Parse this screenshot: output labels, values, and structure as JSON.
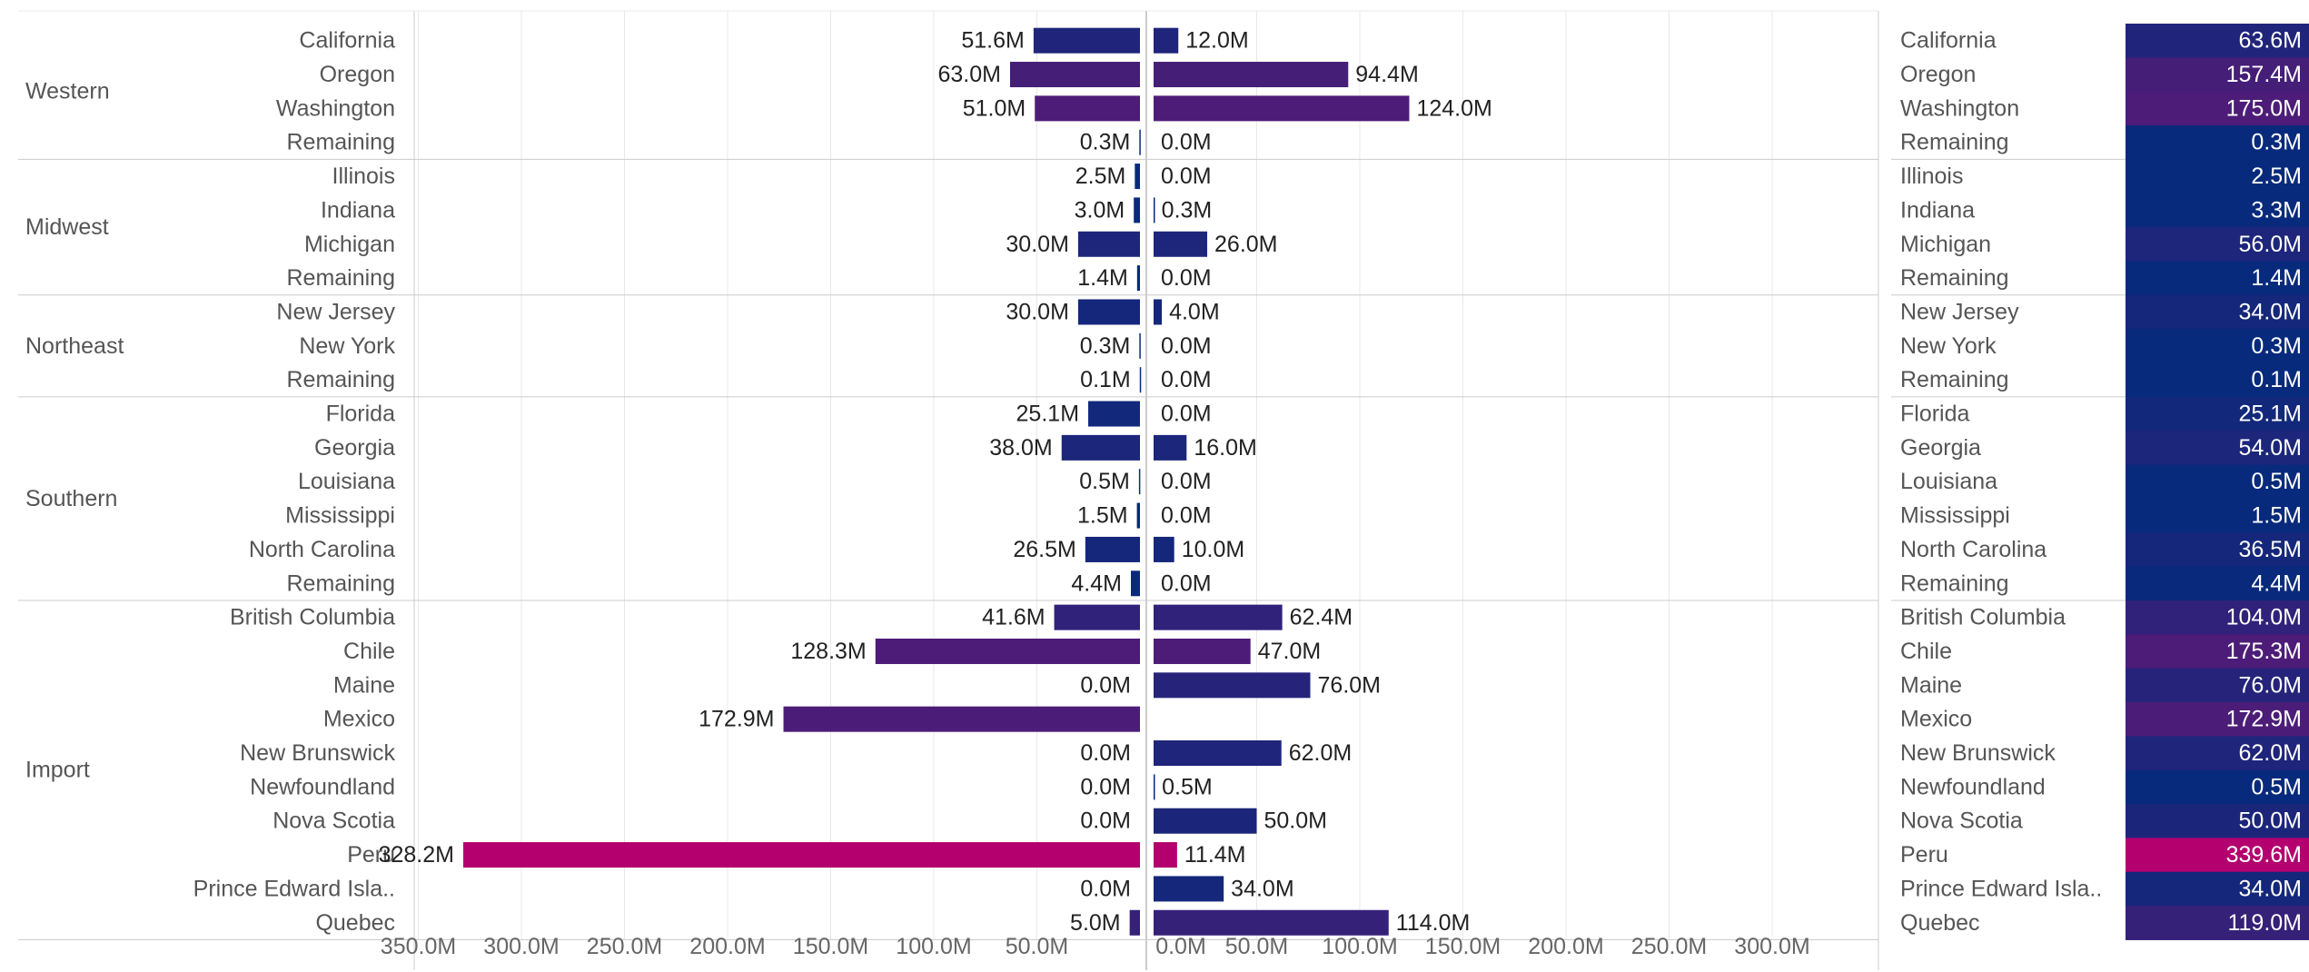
{
  "chart_data": {
    "type": "bar",
    "units": "M",
    "title": "",
    "x_ticks_left": [
      "350.0M",
      "300.0M",
      "250.0M",
      "200.0M",
      "150.0M",
      "100.0M",
      "50.0M"
    ],
    "x_ticks_right": [
      "0.0M",
      "50.0M",
      "100.0M",
      "150.0M",
      "200.0M",
      "250.0M",
      "300.0M"
    ],
    "groups": [
      {
        "name": "Western",
        "rows": [
          {
            "label": "California",
            "left": 51.6,
            "right": 12.0,
            "total": 63.6,
            "left_label": "51.6M",
            "right_label": "12.0M",
            "total_label": "63.6M"
          },
          {
            "label": "Oregon",
            "left": 63.0,
            "right": 94.4,
            "total": 157.4,
            "left_label": "63.0M",
            "right_label": "94.4M",
            "total_label": "157.4M"
          },
          {
            "label": "Washington",
            "left": 51.0,
            "right": 124.0,
            "total": 175.0,
            "left_label": "51.0M",
            "right_label": "124.0M",
            "total_label": "175.0M"
          },
          {
            "label": "Remaining",
            "left": 0.3,
            "right": 0.0,
            "total": 0.3,
            "left_label": "0.3M",
            "right_label": "0.0M",
            "total_label": "0.3M"
          }
        ]
      },
      {
        "name": "Midwest",
        "rows": [
          {
            "label": "Illinois",
            "left": 2.5,
            "right": 0.0,
            "total": 2.5,
            "left_label": "2.5M",
            "right_label": "0.0M",
            "total_label": "2.5M"
          },
          {
            "label": "Indiana",
            "left": 3.0,
            "right": 0.3,
            "total": 3.3,
            "left_label": "3.0M",
            "right_label": "0.3M",
            "total_label": "3.3M"
          },
          {
            "label": "Michigan",
            "left": 30.0,
            "right": 26.0,
            "total": 56.0,
            "left_label": "30.0M",
            "right_label": "26.0M",
            "total_label": "56.0M"
          },
          {
            "label": "Remaining",
            "left": 1.4,
            "right": 0.0,
            "total": 1.4,
            "left_label": "1.4M",
            "right_label": "0.0M",
            "total_label": "1.4M"
          }
        ]
      },
      {
        "name": "Northeast",
        "rows": [
          {
            "label": "New Jersey",
            "left": 30.0,
            "right": 4.0,
            "total": 34.0,
            "left_label": "30.0M",
            "right_label": "4.0M",
            "total_label": "34.0M"
          },
          {
            "label": "New York",
            "left": 0.3,
            "right": 0.0,
            "total": 0.3,
            "left_label": "0.3M",
            "right_label": "0.0M",
            "total_label": "0.3M"
          },
          {
            "label": "Remaining",
            "left": 0.1,
            "right": 0.0,
            "total": 0.1,
            "left_label": "0.1M",
            "right_label": "0.0M",
            "total_label": "0.1M"
          }
        ]
      },
      {
        "name": "Southern",
        "rows": [
          {
            "label": "Florida",
            "left": 25.1,
            "right": 0.0,
            "total": 25.1,
            "left_label": "25.1M",
            "right_label": "0.0M",
            "total_label": "25.1M"
          },
          {
            "label": "Georgia",
            "left": 38.0,
            "right": 16.0,
            "total": 54.0,
            "left_label": "38.0M",
            "right_label": "16.0M",
            "total_label": "54.0M"
          },
          {
            "label": "Louisiana",
            "left": 0.5,
            "right": 0.0,
            "total": 0.5,
            "left_label": "0.5M",
            "right_label": "0.0M",
            "total_label": "0.5M"
          },
          {
            "label": "Mississippi",
            "left": 1.5,
            "right": 0.0,
            "total": 1.5,
            "left_label": "1.5M",
            "right_label": "0.0M",
            "total_label": "1.5M"
          },
          {
            "label": "North Carolina",
            "left": 26.5,
            "right": 10.0,
            "total": 36.5,
            "left_label": "26.5M",
            "right_label": "10.0M",
            "total_label": "36.5M"
          },
          {
            "label": "Remaining",
            "left": 4.4,
            "right": 0.0,
            "total": 4.4,
            "left_label": "4.4M",
            "right_label": "0.0M",
            "total_label": "4.4M"
          }
        ]
      },
      {
        "name": "Import",
        "rows": [
          {
            "label": "British Columbia",
            "left": 41.6,
            "right": 62.4,
            "total": 104.0,
            "left_label": "41.6M",
            "right_label": "62.4M",
            "total_label": "104.0M"
          },
          {
            "label": "Chile",
            "left": 128.3,
            "right": 47.0,
            "total": 175.3,
            "left_label": "128.3M",
            "right_label": "47.0M",
            "total_label": "175.3M"
          },
          {
            "label": "Maine",
            "left": 0.0,
            "right": 76.0,
            "total": 76.0,
            "left_label": "0.0M",
            "right_label": "76.0M",
            "total_label": "76.0M"
          },
          {
            "label": "Mexico",
            "left": 172.9,
            "right": 0.0,
            "total": 172.9,
            "left_label": "172.9M",
            "right_label": "",
            "total_label": "172.9M"
          },
          {
            "label": "New Brunswick",
            "left": 0.0,
            "right": 62.0,
            "total": 62.0,
            "left_label": "0.0M",
            "right_label": "62.0M",
            "total_label": "62.0M"
          },
          {
            "label": "Newfoundland",
            "left": 0.0,
            "right": 0.5,
            "total": 0.5,
            "left_label": "0.0M",
            "right_label": "0.5M",
            "total_label": "0.5M"
          },
          {
            "label": "Nova Scotia",
            "left": 0.0,
            "right": 50.0,
            "total": 50.0,
            "left_label": "0.0M",
            "right_label": "50.0M",
            "total_label": "50.0M"
          },
          {
            "label": "Peru",
            "left": 328.2,
            "right": 11.4,
            "total": 339.6,
            "left_label": "328.2M",
            "right_label": "11.4M",
            "total_label": "339.6M"
          },
          {
            "label": "Prince Edward Island",
            "display_label": "Prince Edward Isla..",
            "left": 0.0,
            "right": 34.0,
            "total": 34.0,
            "left_label": "0.0M",
            "right_label": "34.0M",
            "total_label": "34.0M"
          },
          {
            "label": "Quebec",
            "left": 5.0,
            "right": 114.0,
            "total": 119.0,
            "left_label": "5.0M",
            "right_label": "114.0M",
            "total_label": "119.0M"
          }
        ]
      }
    ],
    "colors": {
      "low": "#072a7c",
      "mid": "#4a1d78",
      "high": "#b3006e",
      "text": "#333333",
      "label": "#666666",
      "grid": "#e8e8e8",
      "divider": "#cccccc"
    }
  }
}
